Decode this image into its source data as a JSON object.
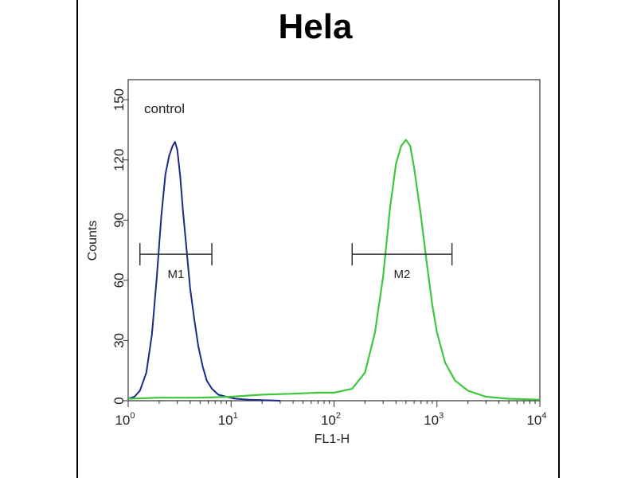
{
  "chart_data": {
    "type": "line",
    "title": "Hela",
    "xlabel": "FL1-H",
    "ylabel": "Counts",
    "xscale": "log",
    "xlim": [
      1,
      10000
    ],
    "ylim": [
      0,
      160
    ],
    "x_ticks": [
      {
        "base": "10",
        "exp": "0"
      },
      {
        "base": "10",
        "exp": "1"
      },
      {
        "base": "10",
        "exp": "2"
      },
      {
        "base": "10",
        "exp": "3"
      },
      {
        "base": "10",
        "exp": "4"
      }
    ],
    "y_ticks": [
      "0",
      "30",
      "60",
      "90",
      "120",
      "150"
    ],
    "y_tick_values": [
      0,
      30,
      60,
      90,
      120,
      150
    ],
    "annotation": "control",
    "gates": [
      {
        "label": "M1",
        "x_start": 1.3,
        "x_end": 6.5,
        "y": 73
      },
      {
        "label": "M2",
        "x_start": 150,
        "x_end": 1400,
        "y": 73
      }
    ],
    "series": [
      {
        "color": "#1c2a8c",
        "x": [
          1.0,
          1.15,
          1.3,
          1.5,
          1.7,
          1.9,
          2.1,
          2.3,
          2.5,
          2.7,
          2.85,
          3.0,
          3.2,
          3.4,
          3.7,
          4.0,
          4.4,
          4.8,
          5.3,
          5.8,
          6.5,
          7.5,
          9,
          11,
          15,
          20,
          30
        ],
        "y": [
          1,
          2,
          5,
          14,
          33,
          62,
          92,
          113,
          122,
          127,
          129,
          125,
          112,
          95,
          75,
          56,
          40,
          27,
          17,
          10,
          6,
          3,
          2,
          1,
          0.5,
          0.3,
          0
        ]
      },
      {
        "color": "#3ec83e",
        "x": [
          1,
          2,
          5,
          10,
          20,
          40,
          70,
          100,
          150,
          200,
          250,
          300,
          350,
          400,
          450,
          500,
          550,
          600,
          700,
          800,
          900,
          1000,
          1200,
          1500,
          2000,
          3000,
          5000,
          10000
        ],
        "y": [
          1,
          1.5,
          1.5,
          2,
          3,
          3.5,
          4,
          4,
          6,
          14,
          34,
          62,
          96,
          118,
          127,
          130,
          127,
          116,
          92,
          68,
          48,
          34,
          19,
          10,
          5,
          2,
          1,
          0.5
        ]
      }
    ]
  }
}
